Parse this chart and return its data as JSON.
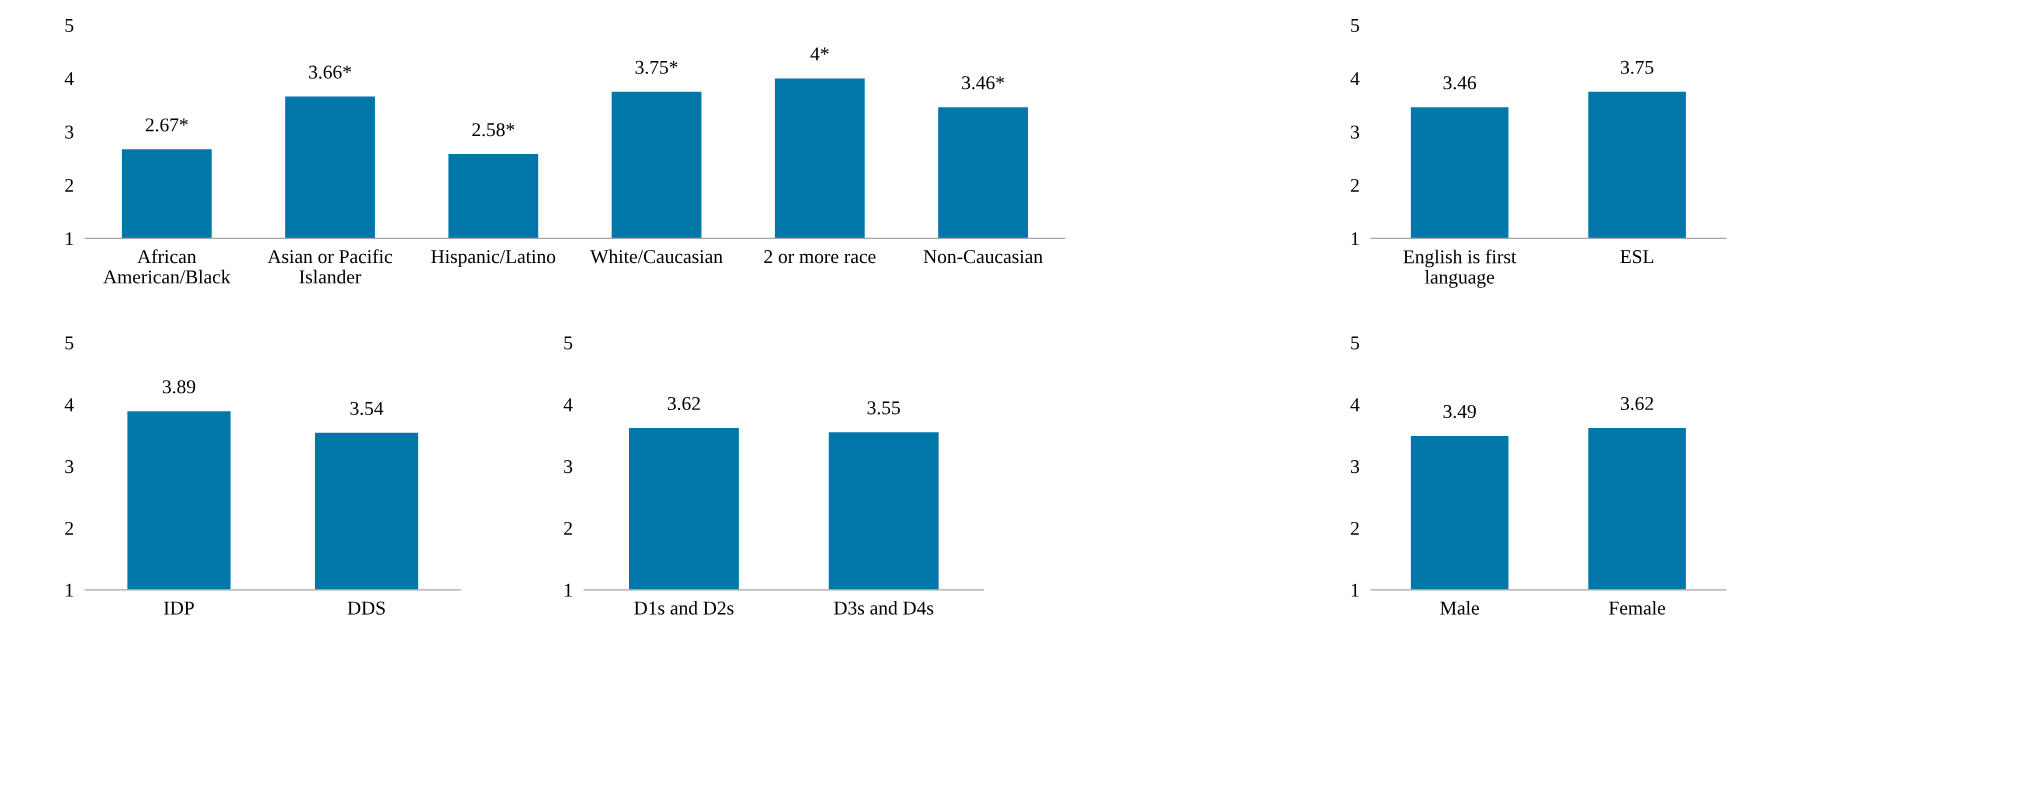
{
  "chart_data": [
    {
      "type": "bar",
      "categories": [
        "African\nAmerican/Black",
        "Asian or Pacific\nIslander",
        "Hispanic/Latino",
        "White/Caucasian",
        "2 or more race",
        "Non-Caucasian"
      ],
      "values": [
        2.67,
        3.66,
        2.58,
        3.75,
        4,
        3.46
      ],
      "value_labels": [
        "2.67*",
        "3.66*",
        "2.58*",
        "3.75*",
        "4*",
        "3.46*"
      ],
      "color": "#0077a8",
      "ylim": [
        1,
        5
      ],
      "yticks": [
        1,
        2,
        3,
        4,
        5
      ],
      "grid": false
    },
    {
      "type": "bar",
      "categories": [
        "English is first\nlanguage",
        "ESL"
      ],
      "values": [
        3.46,
        3.75
      ],
      "data_labels": true,
      "color": "#0077a8",
      "ylim": [
        1,
        5
      ],
      "yticks": [
        1,
        2,
        3,
        4,
        5
      ],
      "grid": false
    },
    {
      "type": "bar",
      "categories": [
        "IDP",
        "DDS"
      ],
      "values": [
        3.89,
        3.54
      ],
      "data_labels": true,
      "color": "#0077a8",
      "ylim": [
        1,
        5
      ],
      "yticks": [
        1,
        2,
        3,
        4,
        5
      ],
      "grid": false
    },
    {
      "type": "bar",
      "categories": [
        "D1s and D2s",
        "D3s and D4s"
      ],
      "values": [
        3.62,
        3.55
      ],
      "data_labels": true,
      "color": "#0077a8",
      "ylim": [
        1,
        5
      ],
      "yticks": [
        1,
        2,
        3,
        4,
        5
      ],
      "grid": false
    },
    {
      "type": "bar",
      "categories": [
        "Male",
        "Female"
      ],
      "values": [
        3.49,
        3.62
      ],
      "data_labels": true,
      "color": "#0077a8",
      "ylim": [
        1,
        5
      ],
      "yticks": [
        1,
        2,
        3,
        4,
        5
      ],
      "grid": false
    }
  ]
}
